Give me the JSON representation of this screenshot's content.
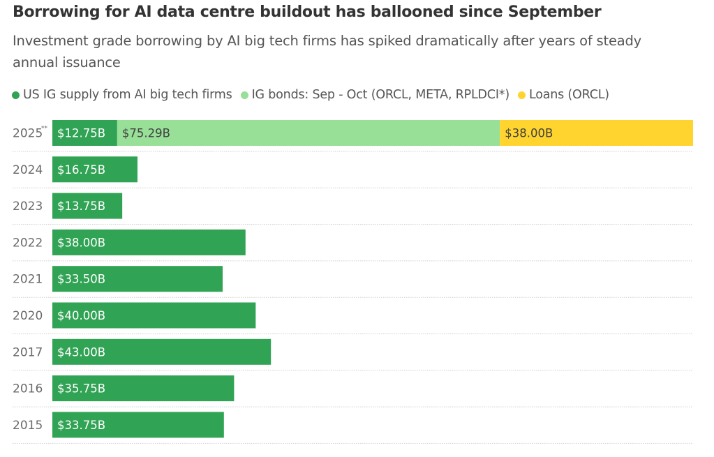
{
  "chart_data": {
    "type": "bar",
    "orientation": "horizontal",
    "stacked": true,
    "title": "Borrowing for AI data centre buildout has ballooned since September",
    "subtitle": "Investment grade borrowing by AI big tech firms has spiked dramatically after years of steady annual issuance",
    "xlabel": "",
    "ylabel": "",
    "categories": [
      "2025",
      "2024",
      "2023",
      "2022",
      "2021",
      "2020",
      "2017",
      "2016",
      "2015"
    ],
    "category_footnotes": {
      "2025": "**"
    },
    "series": [
      {
        "name": "US IG supply from AI big tech firms",
        "color": "#31a354",
        "values": [
          12.75,
          16.75,
          13.75,
          38.0,
          33.5,
          40.0,
          43.0,
          35.75,
          33.75
        ],
        "labels": [
          "$12.75B",
          "$16.75B",
          "$13.75B",
          "$38.00B",
          "$33.50B",
          "$40.00B",
          "$43.00B",
          "$35.75B",
          "$33.75B"
        ],
        "label_color": "#ffffff"
      },
      {
        "name": "IG bonds: Sep - Oct (ORCL, META, RPLDCI*)",
        "color": "#98df98",
        "values": [
          75.29,
          0,
          0,
          0,
          0,
          0,
          0,
          0,
          0
        ],
        "labels": [
          "$75.29B",
          "",
          "",
          "",
          "",
          "",
          "",
          "",
          ""
        ],
        "label_color": "#404040"
      },
      {
        "name": "Loans (ORCL)",
        "color": "#ffd42e",
        "values": [
          38.0,
          0,
          0,
          0,
          0,
          0,
          0,
          0,
          0
        ],
        "labels": [
          "$38.00B",
          "",
          "",
          "",
          "",
          "",
          "",
          "",
          ""
        ],
        "label_color": "#404040"
      }
    ],
    "xlim": [
      0,
      126.04
    ],
    "grid": "dotted separators between rows",
    "legend_position": "top-left"
  }
}
